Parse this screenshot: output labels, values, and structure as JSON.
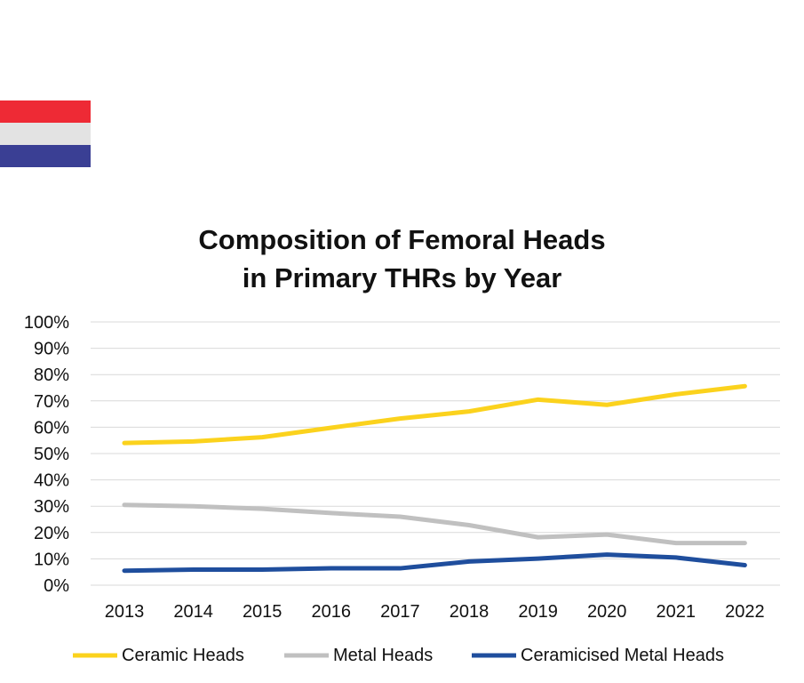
{
  "flag": {
    "colors": [
      "#ee2a35",
      "#e3e3e3",
      "#3a3f94"
    ]
  },
  "chart_data": {
    "type": "line",
    "title_line1": "Composition of Femoral Heads",
    "title_line2": "in Primary THRs by Year",
    "x": [
      "2013",
      "2014",
      "2015",
      "2016",
      "2017",
      "2018",
      "2019",
      "2020",
      "2021",
      "2022"
    ],
    "ylim": [
      0,
      100
    ],
    "yticks": [
      "0%",
      "10%",
      "20%",
      "30%",
      "40%",
      "50%",
      "60%",
      "70%",
      "80%",
      "90%",
      "100%"
    ],
    "grid": true,
    "legend_position": "bottom",
    "series": [
      {
        "name": "Ceramic Heads",
        "color": "#fbd21d",
        "values": [
          54,
          54.6,
          56.2,
          59.8,
          63.3,
          66,
          70.5,
          68.5,
          72.5,
          75.6
        ]
      },
      {
        "name": "Metal Heads",
        "color": "#c0c0c0",
        "values": [
          30.5,
          30,
          29,
          27.4,
          26,
          22.8,
          18.2,
          19.2,
          16,
          16
        ]
      },
      {
        "name": "Ceramicised Metal Heads",
        "color": "#1f4e9d",
        "values": [
          5.5,
          5.9,
          5.9,
          6.4,
          6.4,
          9,
          10.1,
          11.6,
          10.5,
          7.6
        ]
      }
    ]
  }
}
